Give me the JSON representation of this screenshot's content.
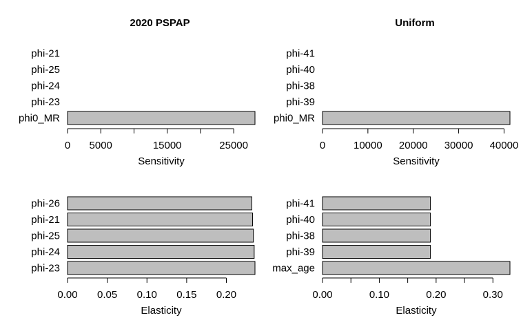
{
  "chart_data": [
    {
      "type": "bar",
      "orientation": "horizontal",
      "title": "2020 PSPAP",
      "xlabel": "Sensitivity",
      "categories": [
        "phi-21",
        "phi-25",
        "phi-24",
        "phi-23",
        "phi0_MR"
      ],
      "values": [
        0,
        0,
        0,
        0,
        28200
      ],
      "xticks": [
        0,
        5000,
        10000,
        15000,
        20000,
        25000
      ],
      "xtick_labels": [
        "0",
        "5000",
        "",
        "15000",
        "",
        "25000"
      ],
      "xlim": [
        0,
        28200
      ]
    },
    {
      "type": "bar",
      "orientation": "horizontal",
      "title": "Uniform",
      "xlabel": "Sensitivity",
      "categories": [
        "phi-41",
        "phi-40",
        "phi-38",
        "phi-39",
        "phi0_MR"
      ],
      "values": [
        0,
        0,
        0,
        0,
        41300
      ],
      "xticks": [
        0,
        10000,
        20000,
        30000,
        40000
      ],
      "xtick_labels": [
        "0",
        "10000",
        "20000",
        "30000",
        "40000"
      ],
      "xlim": [
        0,
        41300
      ]
    },
    {
      "type": "bar",
      "orientation": "horizontal",
      "title": "",
      "xlabel": "Elasticity",
      "categories": [
        "phi-26",
        "phi-21",
        "phi-25",
        "phi-24",
        "phi-23"
      ],
      "values": [
        0.232,
        0.233,
        0.234,
        0.235,
        0.236
      ],
      "xticks": [
        0.0,
        0.05,
        0.1,
        0.15,
        0.2
      ],
      "xtick_labels": [
        "0.00",
        "0.05",
        "0.10",
        "0.15",
        "0.20"
      ],
      "xlim": [
        0,
        0.236
      ]
    },
    {
      "type": "bar",
      "orientation": "horizontal",
      "title": "",
      "xlabel": "Elasticity",
      "categories": [
        "phi-41",
        "phi-40",
        "phi-38",
        "phi-39",
        "max_age"
      ],
      "values": [
        0.19,
        0.19,
        0.19,
        0.19,
        0.33
      ],
      "xticks": [
        0.0,
        0.05,
        0.1,
        0.15,
        0.2,
        0.25,
        0.3
      ],
      "xtick_labels": [
        "0.00",
        "",
        "0.10",
        "",
        "0.20",
        "",
        "0.30"
      ],
      "xlim": [
        0,
        0.33
      ]
    }
  ]
}
